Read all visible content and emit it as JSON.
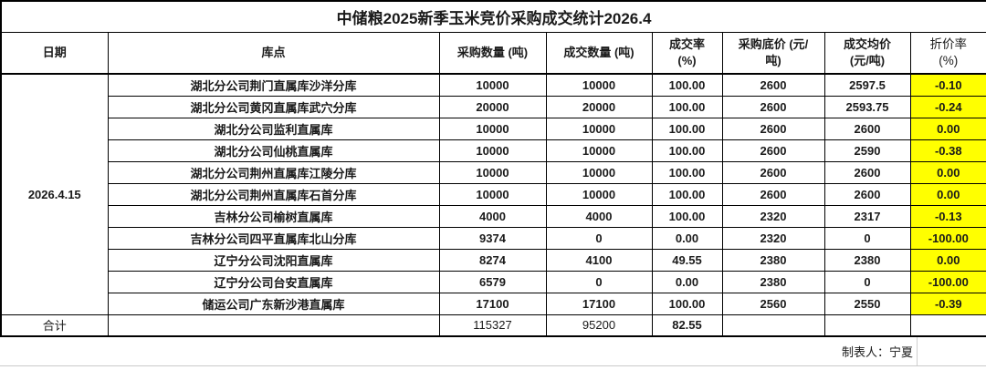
{
  "title": "中储粮2025新季玉米竞价采购成交统计2026.4",
  "header": {
    "date": "日期",
    "warehouse": "库点",
    "purchase_qty": "采购数量 (吨)",
    "deal_qty": "成交数量 (吨)",
    "deal_rate": "成交率\n(%)",
    "floor_price": "采购底价 (元/\n吨)",
    "avg_price": "成交均价\n(元/吨)",
    "discount_rate": "折价率\n(%)"
  },
  "date": "2026.4.15",
  "rows": [
    {
      "warehouse": "湖北分公司荆门直属库沙洋分库",
      "purchase_qty": "10000",
      "deal_qty": "10000",
      "deal_rate": "100.00",
      "floor_price": "2600",
      "avg_price": "2597.5",
      "discount_rate": "-0.10"
    },
    {
      "warehouse": "湖北分公司黄冈直属库武穴分库",
      "purchase_qty": "20000",
      "deal_qty": "20000",
      "deal_rate": "100.00",
      "floor_price": "2600",
      "avg_price": "2593.75",
      "discount_rate": "-0.24"
    },
    {
      "warehouse": "湖北分公司监利直属库",
      "purchase_qty": "10000",
      "deal_qty": "10000",
      "deal_rate": "100.00",
      "floor_price": "2600",
      "avg_price": "2600",
      "discount_rate": "0.00"
    },
    {
      "warehouse": "湖北分公司仙桃直属库",
      "purchase_qty": "10000",
      "deal_qty": "10000",
      "deal_rate": "100.00",
      "floor_price": "2600",
      "avg_price": "2590",
      "discount_rate": "-0.38"
    },
    {
      "warehouse": "湖北分公司荆州直属库江陵分库",
      "purchase_qty": "10000",
      "deal_qty": "10000",
      "deal_rate": "100.00",
      "floor_price": "2600",
      "avg_price": "2600",
      "discount_rate": "0.00"
    },
    {
      "warehouse": "湖北分公司荆州直属库石首分库",
      "purchase_qty": "10000",
      "deal_qty": "10000",
      "deal_rate": "100.00",
      "floor_price": "2600",
      "avg_price": "2600",
      "discount_rate": "0.00"
    },
    {
      "warehouse": "吉林分公司榆树直属库",
      "purchase_qty": "4000",
      "deal_qty": "4000",
      "deal_rate": "100.00",
      "floor_price": "2320",
      "avg_price": "2317",
      "discount_rate": "-0.13"
    },
    {
      "warehouse": "吉林分公司四平直属库北山分库",
      "purchase_qty": "9374",
      "deal_qty": "0",
      "deal_rate": "0.00",
      "floor_price": "2320",
      "avg_price": "0",
      "discount_rate": "-100.00"
    },
    {
      "warehouse": "辽宁分公司沈阳直属库",
      "purchase_qty": "8274",
      "deal_qty": "4100",
      "deal_rate": "49.55",
      "floor_price": "2380",
      "avg_price": "2380",
      "discount_rate": "0.00"
    },
    {
      "warehouse": "辽宁分公司台安直属库",
      "purchase_qty": "6579",
      "deal_qty": "0",
      "deal_rate": "0.00",
      "floor_price": "2380",
      "avg_price": "0",
      "discount_rate": "-100.00"
    },
    {
      "warehouse": "储运公司广东新沙港直属库",
      "purchase_qty": "17100",
      "deal_qty": "17100",
      "deal_rate": "100.00",
      "floor_price": "2560",
      "avg_price": "2550",
      "discount_rate": "-0.39"
    }
  ],
  "total": {
    "label": "合计",
    "purchase_qty": "115327",
    "deal_qty": "95200",
    "deal_rate": "82.55"
  },
  "footer": {
    "creator": "制表人：宁夏"
  },
  "colors": {
    "highlight": "#ffff00",
    "border": "#000000"
  }
}
